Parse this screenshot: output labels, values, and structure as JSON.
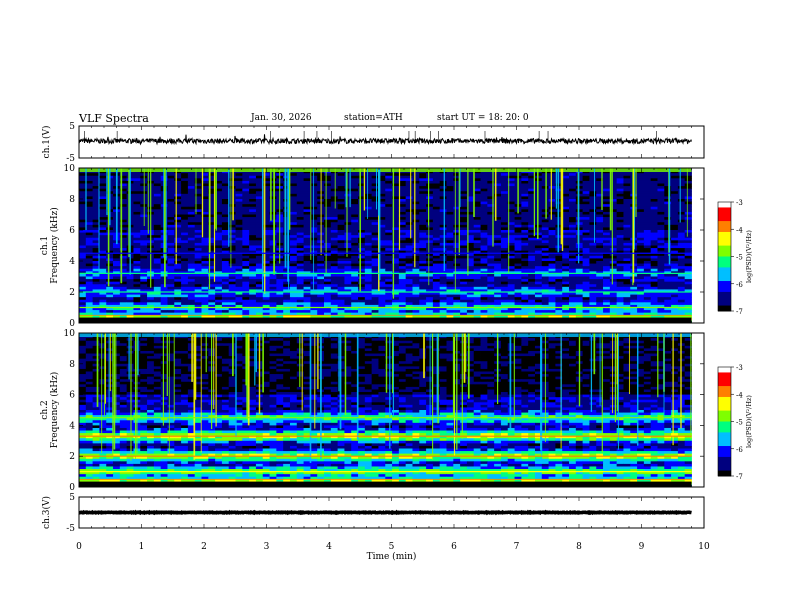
{
  "header": {
    "title": "VLF  Spectra",
    "date": "Jan. 30, 2026",
    "station": "station=ATH",
    "start_ut": "start  UT  =   18: 20: 0"
  },
  "chart_data": [
    {
      "type": "line",
      "panel": "ch1-waveform",
      "ylabel": "ch.1(V)",
      "yticks": [
        "5",
        "-5"
      ],
      "ylim": [
        -5,
        5
      ],
      "x_range_min": [
        0,
        9.8
      ],
      "trace_level": 0.3,
      "trace_noise": 0.8,
      "color": "#000000"
    },
    {
      "type": "heatmap",
      "panel": "ch1-spectrogram",
      "ylabel": "ch.1\nFrequency  (kHz)",
      "yticks": [
        "0",
        "2",
        "4",
        "6",
        "8",
        "10"
      ],
      "ylim": [
        0,
        10
      ],
      "x_range_min": [
        0,
        9.8
      ],
      "colorbar": {
        "label": "log(PSD)(V²/Hz)",
        "ticks": [
          "-3",
          "-4",
          "-5",
          "-6",
          "-7"
        ],
        "range": [
          -7,
          -3
        ]
      },
      "bands": [
        {
          "f": 0.3,
          "level": -4.6
        },
        {
          "f": 1.0,
          "level": -5.6
        },
        {
          "f": 2.0,
          "level": -5.8
        },
        {
          "f": 3.2,
          "level": -5.9
        },
        {
          "f": 4.5,
          "level": -6.7
        }
      ]
    },
    {
      "type": "heatmap",
      "panel": "ch2-spectrogram",
      "ylabel": "ch.2\nFrequency  (kHz)",
      "yticks": [
        "0",
        "2",
        "4",
        "6",
        "8",
        "10"
      ],
      "ylim": [
        0,
        10
      ],
      "x_range_min": [
        0,
        9.8
      ],
      "colorbar": {
        "label": "log(PSD)(V²/Hz)",
        "ticks": [
          "-3",
          "-4",
          "-5",
          "-6",
          "-7"
        ],
        "range": [
          -7,
          -3
        ]
      },
      "bands": [
        {
          "f": 0.3,
          "level": -4.5
        },
        {
          "f": 1.0,
          "level": -5.0
        },
        {
          "f": 2.0,
          "level": -4.7
        },
        {
          "f": 3.3,
          "level": -4.6
        },
        {
          "f": 4.5,
          "level": -5.2
        }
      ]
    },
    {
      "type": "line",
      "panel": "ch3-waveform",
      "ylabel": "ch.3(V)",
      "yticks": [
        "5",
        "-5"
      ],
      "ylim": [
        -5,
        5
      ],
      "x_range_min": [
        0,
        9.8
      ],
      "trace_level": 0,
      "trace_noise": 0.1,
      "color": "#000000"
    }
  ],
  "xaxis": {
    "label": "Time  (min)",
    "ticks": [
      "0",
      "1",
      "2",
      "3",
      "4",
      "5",
      "6",
      "7",
      "8",
      "9",
      "10"
    ],
    "range": [
      0,
      10
    ]
  },
  "colormap": [
    "#000000",
    "#00007f",
    "#0000ff",
    "#00bfff",
    "#00ff7f",
    "#7fff00",
    "#ffff00",
    "#ff7f00",
    "#ff0000",
    "#ffffff"
  ]
}
